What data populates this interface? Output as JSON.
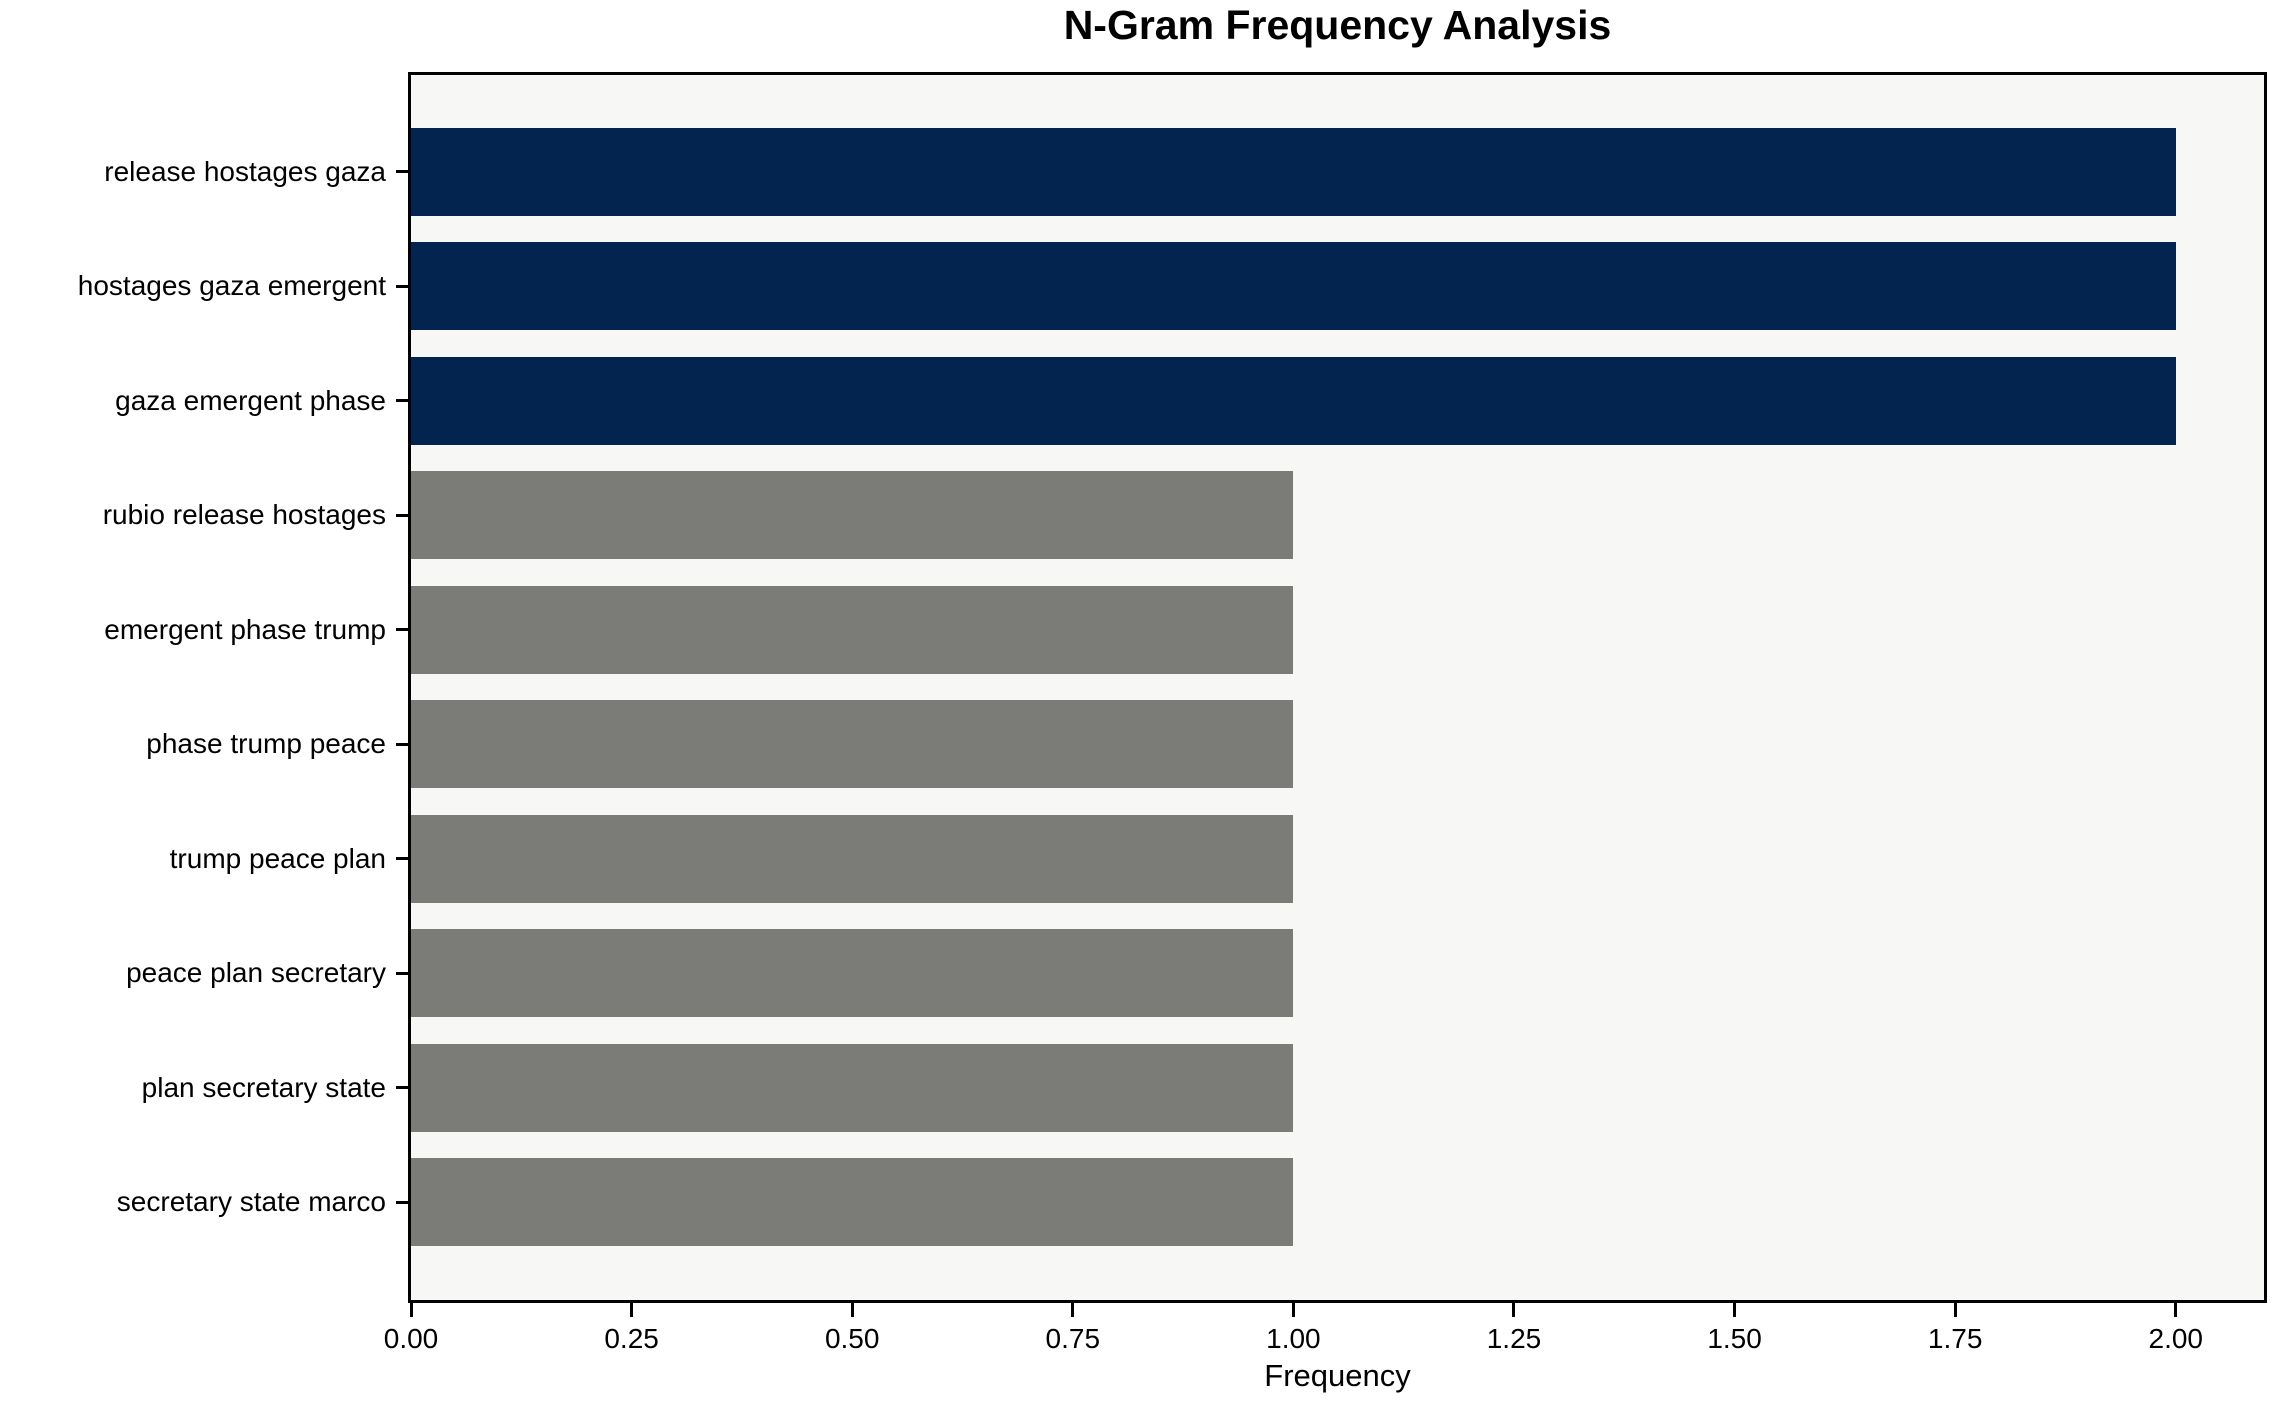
{
  "chart_data": {
    "type": "bar",
    "orientation": "horizontal",
    "title": "N-Gram Frequency Analysis",
    "xlabel": "Frequency",
    "ylabel": "",
    "categories": [
      "release hostages gaza",
      "hostages gaza emergent",
      "gaza emergent phase",
      "rubio release hostages",
      "emergent phase trump",
      "phase trump peace",
      "trump peace plan",
      "peace plan secretary",
      "plan secretary state",
      "secretary state marco"
    ],
    "values": [
      2,
      2,
      2,
      1,
      1,
      1,
      1,
      1,
      1,
      1
    ],
    "bar_colors": [
      "#02244e",
      "#02244e",
      "#02244e",
      "#7b7b78",
      "#7b7b78",
      "#7b7b78",
      "#7b7b78",
      "#7b7b78",
      "#7b7b78",
      "#7b7b78"
    ],
    "xlim": [
      0,
      2.1
    ],
    "xticks": [
      0,
      0.25,
      0.5,
      0.75,
      1.0,
      1.25,
      1.5,
      1.75,
      2.0
    ],
    "xtick_labels": [
      "0.00",
      "0.25",
      "0.50",
      "0.75",
      "1.00",
      "1.25",
      "1.50",
      "1.75",
      "2.00"
    ],
    "grid": false,
    "legend": "none",
    "colors": {
      "highlight_bar": "#02244e",
      "default_bar": "#7b7b78",
      "plot_background": "#f7f7f6",
      "figure_background": "#ffffff",
      "spine": "#000000",
      "text": "#000000"
    }
  }
}
